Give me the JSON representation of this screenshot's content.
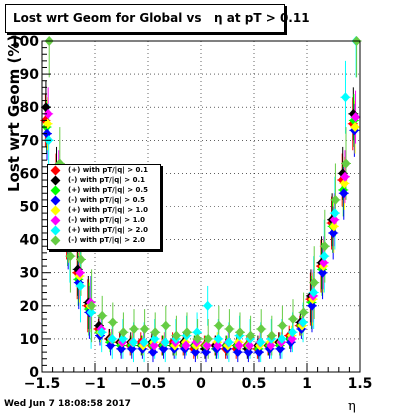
{
  "title": "Lost wrt Geom for Global vs   η at pT > 0.11",
  "footer": "Wed Jun  7 18:08:58 2017",
  "chart_data": {
    "type": "scatter",
    "xlabel": "η",
    "ylabel": "Lost wrt Geom (%)",
    "xlim": [
      -1.5,
      1.5
    ],
    "ylim": [
      0,
      100
    ],
    "x_ticks": [
      "−1.5",
      "−1",
      "−0.5",
      "0",
      "0.5",
      "1",
      "1.5"
    ],
    "y_ticks": [
      "0",
      "10",
      "20",
      "30",
      "40",
      "50",
      "60",
      "70",
      "80",
      "90",
      "100"
    ],
    "grid": true,
    "legend_position": "left-middle",
    "x": [
      -1.45,
      -1.35,
      -1.25,
      -1.15,
      -1.05,
      -0.95,
      -0.85,
      -0.75,
      -0.65,
      -0.55,
      -0.45,
      -0.35,
      -0.25,
      -0.15,
      -0.05,
      0.05,
      0.15,
      0.25,
      0.35,
      0.45,
      0.55,
      0.65,
      0.75,
      0.85,
      0.95,
      1.05,
      1.15,
      1.25,
      1.35,
      1.45
    ],
    "series": [
      {
        "name": "(+) with pT/|q| > 0.1",
        "color": "#ff0000",
        "values": [
          76,
          58,
          42,
          30,
          20,
          13,
          10,
          9,
          8,
          9,
          8,
          8,
          9,
          8,
          7,
          8,
          8,
          7,
          7,
          8,
          7,
          8,
          9,
          11,
          14,
          22,
          32,
          45,
          58,
          75
        ]
      },
      {
        "name": "(-) with pT/|q| > 0.1",
        "color": "#000000",
        "values": [
          80,
          60,
          45,
          31,
          21,
          14,
          10,
          9,
          9,
          8,
          9,
          8,
          8,
          9,
          8,
          7,
          8,
          8,
          8,
          7,
          8,
          8,
          9,
          10,
          15,
          23,
          33,
          46,
          60,
          78
        ]
      },
      {
        "name": "(+) with pT/|q| > 0.5",
        "color": "#00ff00",
        "values": [
          74,
          55,
          40,
          28,
          19,
          12,
          9,
          8,
          8,
          8,
          8,
          8,
          8,
          8,
          8,
          8,
          7,
          8,
          8,
          8,
          7,
          8,
          8,
          10,
          14,
          21,
          31,
          44,
          55,
          76
        ]
      },
      {
        "name": "(-) with pT/|q| > 0.5",
        "color": "#0000ff",
        "values": [
          72,
          54,
          39,
          27,
          18,
          11,
          8,
          7,
          7,
          7,
          6,
          7,
          7,
          7,
          6,
          6,
          7,
          7,
          6,
          6,
          6,
          7,
          7,
          9,
          13,
          20,
          30,
          42,
          54,
          73
        ]
      },
      {
        "name": "(+) with pT/|q| > 1.0",
        "color": "#ffff00",
        "values": [
          75,
          56,
          41,
          29,
          20,
          12,
          10,
          9,
          9,
          8,
          9,
          9,
          8,
          9,
          8,
          8,
          9,
          8,
          9,
          8,
          8,
          9,
          9,
          11,
          14,
          22,
          32,
          44,
          57,
          74
        ]
      },
      {
        "name": "(-) with pT/|q| > 1.0",
        "color": "#ff00ff",
        "values": [
          78,
          59,
          43,
          30,
          21,
          13,
          10,
          9,
          9,
          9,
          8,
          9,
          9,
          8,
          9,
          8,
          8,
          9,
          8,
          8,
          9,
          8,
          9,
          10,
          15,
          23,
          33,
          46,
          59,
          77
        ]
      },
      {
        "name": "(+) with pT/|q| > 2.0",
        "color": "#00ffff",
        "values": [
          70,
          50,
          38,
          26,
          18,
          12,
          10,
          10,
          9,
          9,
          10,
          9,
          10,
          11,
          12,
          20,
          10,
          9,
          11,
          10,
          9,
          10,
          10,
          12,
          15,
          24,
          35,
          48,
          83,
          100
        ]
      },
      {
        "name": "(-) with pT/|q| > 2.0",
        "color": "#66cc44",
        "values": [
          100,
          63,
          35,
          34,
          20,
          17,
          15,
          12,
          13,
          13,
          12,
          14,
          11,
          12,
          10,
          10,
          14,
          13,
          12,
          11,
          13,
          11,
          14,
          16,
          18,
          27,
          38,
          52,
          63,
          100
        ]
      }
    ]
  }
}
